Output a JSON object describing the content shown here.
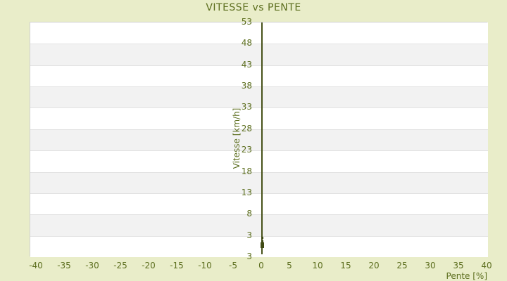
{
  "title": "VITESSE vs PENTE",
  "colors": {
    "background": "#e9edc9",
    "text": "#5c6e1e",
    "axis_line": "#47521a",
    "marker": "#3f4a14",
    "plot_background": "#ffffff",
    "band_gray": "#f2f2f2",
    "gridline": "#e2e2e2",
    "plot_border": "#d0d0d0"
  },
  "chart_data": {
    "type": "scatter",
    "title": "VITESSE vs PENTE",
    "xlabel": "Pente [%]",
    "ylabel": "Vitesse [km/h]",
    "x_ticks": [
      -40,
      -35,
      -30,
      -25,
      -20,
      -15,
      -10,
      -5,
      0,
      5,
      10,
      15,
      20,
      25,
      30,
      35,
      40
    ],
    "y_ticks": [
      53,
      48,
      43,
      38,
      33,
      28,
      23,
      18,
      13,
      8,
      3
    ],
    "y_axis_bottom_label": "3",
    "xlim": [
      -41,
      40.3
    ],
    "ylim_top": 53,
    "y_tick_step": 5,
    "grid": "horizontal-bands",
    "legend": "none",
    "axis_drawn_at_x": 0,
    "points": [
      {
        "pente": 0,
        "vitesse": 2.5,
        "marker_px": 3
      },
      {
        "pente": 0,
        "vitesse": 1.7,
        "marker_px": 3
      },
      {
        "pente": 0,
        "vitesse": 1.05,
        "marker_px": 5
      },
      {
        "pente": 0,
        "vitesse": 0.55,
        "marker_px": 5
      }
    ]
  }
}
